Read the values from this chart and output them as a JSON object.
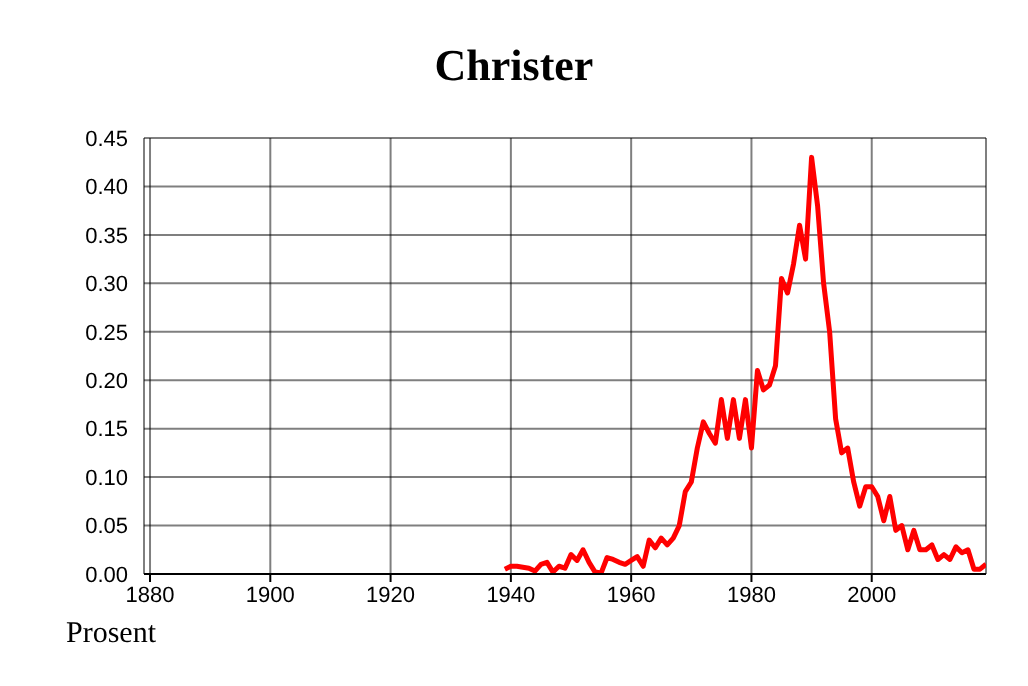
{
  "chart_data": {
    "type": "line",
    "title": "Christer",
    "ylabel": "Prosent",
    "x": [
      1939,
      1940,
      1941,
      1942,
      1943,
      1944,
      1945,
      1946,
      1947,
      1948,
      1949,
      1950,
      1951,
      1952,
      1953,
      1954,
      1955,
      1956,
      1957,
      1958,
      1959,
      1960,
      1961,
      1962,
      1963,
      1964,
      1965,
      1966,
      1967,
      1968,
      1969,
      1970,
      1971,
      1972,
      1973,
      1974,
      1975,
      1976,
      1977,
      1978,
      1979,
      1980,
      1981,
      1982,
      1983,
      1984,
      1985,
      1986,
      1987,
      1988,
      1989,
      1990,
      1991,
      1992,
      1993,
      1994,
      1995,
      1996,
      1997,
      1998,
      1999,
      2000,
      2001,
      2002,
      2003,
      2004,
      2005,
      2006,
      2007,
      2008,
      2009,
      2010,
      2011,
      2012,
      2013,
      2014,
      2015,
      2016,
      2017,
      2018,
      2019
    ],
    "series": [
      {
        "color": "#ff0000",
        "values": [
          0.005,
          0.008,
          0.008,
          0.007,
          0.006,
          0.003,
          0.01,
          0.012,
          0.002,
          0.008,
          0.006,
          0.02,
          0.014,
          0.025,
          0.012,
          0.002,
          0.001,
          0.017,
          0.015,
          0.012,
          0.01,
          0.014,
          0.018,
          0.008,
          0.035,
          0.027,
          0.037,
          0.03,
          0.037,
          0.05,
          0.085,
          0.095,
          0.13,
          0.157,
          0.145,
          0.135,
          0.18,
          0.14,
          0.18,
          0.14,
          0.18,
          0.13,
          0.21,
          0.19,
          0.195,
          0.215,
          0.305,
          0.29,
          0.32,
          0.36,
          0.325,
          0.43,
          0.38,
          0.3,
          0.25,
          0.16,
          0.125,
          0.13,
          0.095,
          0.07,
          0.09,
          0.09,
          0.08,
          0.055,
          0.08,
          0.045,
          0.05,
          0.025,
          0.045,
          0.025,
          0.025,
          0.03,
          0.015,
          0.02,
          0.015,
          0.028,
          0.022,
          0.025,
          0.005,
          0.005,
          0.01
        ]
      }
    ],
    "xlim": [
      1879,
      2019
    ],
    "xticks": [
      1880,
      1900,
      1920,
      1940,
      1960,
      1980,
      2000
    ],
    "ylim": [
      0,
      0.45
    ],
    "yticks": [
      {
        "value": 0,
        "label": "0.00"
      },
      {
        "value": 0.05,
        "label": "0.05"
      },
      {
        "value": 0.1,
        "label": "0.10"
      },
      {
        "value": 0.15,
        "label": "0.15"
      },
      {
        "value": 0.2,
        "label": "0.20"
      },
      {
        "value": 0.25,
        "label": "0.25"
      },
      {
        "value": 0.3,
        "label": "0.30"
      },
      {
        "value": 0.35,
        "label": "0.35"
      },
      {
        "value": 0.4,
        "label": "0.40"
      },
      {
        "value": 0.45,
        "label": "0.45"
      }
    ],
    "grid": true,
    "marker": "none",
    "line_style": "solid"
  }
}
